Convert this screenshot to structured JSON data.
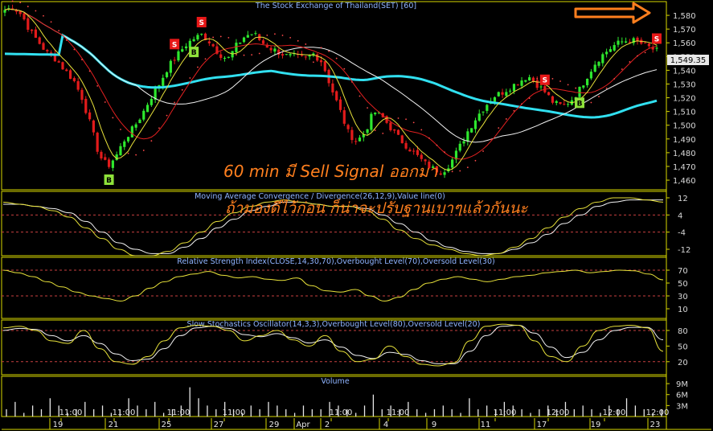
{
  "chart_data": {
    "type": "candlestick",
    "title": "The Stock Exchange of Thailand(SET) [60]",
    "current_price": "1,549.35",
    "price_axis": {
      "ylim": [
        1453,
        1590
      ],
      "ticks": [
        "1,580",
        "1,570",
        "1,560",
        "1,550",
        "1,540",
        "1,530",
        "1,520",
        "1,510",
        "1,500",
        "1,490",
        "1,480",
        "1,470",
        "1,460"
      ]
    },
    "dates": [
      "19",
      "21",
      "25",
      "27",
      "29",
      "Apr",
      "2",
      "4",
      "9",
      "11",
      "17",
      "19",
      "23"
    ],
    "times": [
      "11:00",
      "11:00",
      "11:00",
      "11:00",
      "11:00",
      "11:00",
      "11:00",
      "12:00",
      "12:00",
      "12:00"
    ],
    "price_path": [
      1584,
      1586,
      1580,
      1568,
      1560,
      1552,
      1548,
      1540,
      1533,
      1520,
      1500,
      1478,
      1470,
      1478,
      1490,
      1498,
      1508,
      1520,
      1530,
      1542,
      1550,
      1558,
      1563,
      1566,
      1560,
      1552,
      1548,
      1558,
      1565,
      1567,
      1560,
      1556,
      1553,
      1550,
      1550,
      1548,
      1552,
      1546,
      1528,
      1512,
      1495,
      1488,
      1495,
      1510,
      1506,
      1498,
      1490,
      1484,
      1478,
      1472,
      1468,
      1466,
      1473,
      1484,
      1496,
      1506,
      1514,
      1521,
      1524,
      1528,
      1532,
      1536,
      1530,
      1524,
      1516,
      1514,
      1518,
      1526,
      1537,
      1547,
      1553,
      1558,
      1561,
      1562,
      1560,
      1557,
      1554
    ],
    "signals": [
      {
        "label": "S",
        "position": "top",
        "index": 20
      },
      {
        "label": "S",
        "position": "top",
        "index": 23
      },
      {
        "label": "B",
        "position": "bottom",
        "index": 22
      },
      {
        "label": "B",
        "position": "bottom",
        "index": 12
      },
      {
        "label": "S",
        "position": "top",
        "index": 63
      },
      {
        "label": "B",
        "position": "bottom",
        "index": 67
      },
      {
        "label": "S",
        "position": "top",
        "index": 76
      }
    ],
    "panels": [
      {
        "name": "macd",
        "title": "Moving Average Convergence / Divergence(26,12,9),Value line(0)",
        "ylim": [
          -15,
          15
        ],
        "ticks": [
          "12",
          "4",
          "-4",
          "-12"
        ],
        "tick_values": [
          12,
          4,
          -4,
          -12
        ],
        "ref_lines": [
          4,
          -4
        ],
        "macd": [
          10,
          9,
          8,
          6,
          3,
          -2,
          -7,
          -12,
          -15,
          -15,
          -13,
          -9,
          -4,
          1,
          5,
          8,
          10,
          11,
          10,
          9,
          8,
          8,
          6,
          2,
          -3,
          -7,
          -10,
          -12,
          -14,
          -15,
          -14,
          -11,
          -7,
          -2,
          3,
          7,
          10,
          12,
          12,
          11,
          10
        ],
        "signal": [
          9,
          9,
          8,
          7,
          5,
          1,
          -4,
          -9,
          -12,
          -14,
          -14,
          -11,
          -7,
          -2,
          2,
          6,
          8,
          10,
          10,
          9,
          8,
          8,
          7,
          4,
          0,
          -4,
          -8,
          -11,
          -13,
          -14,
          -14,
          -12,
          -9,
          -5,
          0,
          4,
          8,
          10,
          11,
          11,
          11
        ]
      },
      {
        "name": "rsi",
        "title": "Relative Strength Index(CLOSE,14,30,70),Overbought Level(70),Oversold Level(30)",
        "ylim": [
          -5,
          90
        ],
        "ticks": [
          "70",
          "50",
          "30",
          "10"
        ],
        "tick_values": [
          70,
          50,
          30,
          10
        ],
        "ref_lines": [
          70,
          30
        ],
        "values": [
          70,
          66,
          60,
          52,
          44,
          36,
          30,
          26,
          22,
          30,
          42,
          52,
          60,
          64,
          68,
          62,
          58,
          60,
          56,
          54,
          58,
          46,
          38,
          36,
          40,
          30,
          22,
          28,
          40,
          50,
          56,
          60,
          56,
          52,
          56,
          60,
          62,
          66,
          68,
          70,
          66,
          68,
          70,
          69,
          64,
          55
        ]
      },
      {
        "name": "stochastic",
        "title": "Slow Stochastics Oscillator(14,3,3),Overbought Level(80),Oversold Level(20)",
        "ylim": [
          -5,
          100
        ],
        "ticks": [
          "80",
          "50",
          "20"
        ],
        "tick_values": [
          80,
          50,
          20
        ],
        "ref_lines": [
          80,
          20
        ],
        "k": [
          85,
          88,
          80,
          60,
          55,
          80,
          45,
          20,
          15,
          30,
          60,
          85,
          90,
          88,
          80,
          60,
          70,
          80,
          62,
          50,
          70,
          40,
          20,
          25,
          50,
          30,
          15,
          12,
          18,
          60,
          88,
          92,
          90,
          60,
          30,
          20,
          50,
          80,
          88,
          90,
          85,
          40
        ],
        "d": [
          80,
          84,
          82,
          70,
          60,
          70,
          55,
          35,
          22,
          25,
          45,
          70,
          85,
          88,
          84,
          72,
          68,
          74,
          66,
          56,
          62,
          48,
          32,
          26,
          38,
          34,
          22,
          16,
          16,
          40,
          70,
          88,
          90,
          75,
          48,
          28,
          38,
          62,
          80,
          86,
          86,
          62
        ]
      },
      {
        "name": "volume",
        "title": "Volume",
        "ylim": [
          0,
          11
        ],
        "ticks": [
          "9M",
          "6M",
          "3M"
        ],
        "tick_values": [
          9,
          6,
          3
        ],
        "values_m": [
          2,
          4,
          1,
          3,
          2,
          5,
          3,
          1,
          2,
          4,
          2,
          3,
          1,
          2,
          5,
          3,
          2,
          4,
          1,
          2,
          3,
          8,
          5,
          3,
          2,
          4,
          2,
          1,
          3,
          2,
          4,
          3,
          2,
          1,
          3,
          2,
          2,
          4,
          3,
          2,
          1,
          3,
          6,
          2,
          3,
          2,
          4,
          2,
          1,
          2,
          3,
          2,
          1,
          5,
          2,
          3,
          2,
          4,
          3,
          2,
          1,
          2,
          3,
          2,
          4,
          2,
          3,
          2,
          1,
          3,
          2,
          5,
          3,
          2,
          1,
          2
        ]
      }
    ]
  },
  "annotation": {
    "line1": "60 min มี Sell Signal ออกมา",
    "line2": "ถ้ามองดีไว้ก่อน ก็น่าจะปรับฐานเบาๆแล้วกันนะ"
  },
  "colors": {
    "up": "#2ee82e",
    "down": "#e21b1b",
    "ma_cyan": "#31e0f0",
    "ma_white": "#f2f2f2",
    "ma_red": "#e22020",
    "ma_yellow": "#e8e23a",
    "psar": "#ff4a4a",
    "anno": "#ff7f1e",
    "grid": "#5a1414",
    "border": "#d8d800",
    "buy_box": "#8ee23a",
    "sell_box": "#e81818"
  }
}
